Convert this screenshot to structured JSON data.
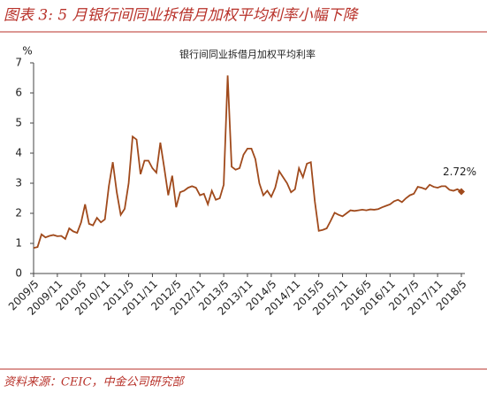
{
  "header": {
    "title": "图表 3: 5 月银行间同业拆借月加权平均利率小幅下降"
  },
  "chart_data": {
    "type": "line",
    "title": "银行间同业拆借月加权平均利率",
    "y_label": "%",
    "categories": [
      "2009/5",
      null,
      null,
      null,
      null,
      null,
      "2009/11",
      null,
      null,
      null,
      null,
      null,
      "2010/5",
      null,
      null,
      null,
      null,
      null,
      "2010/11",
      null,
      null,
      null,
      null,
      null,
      "2011/5",
      null,
      null,
      null,
      null,
      null,
      "2011/11",
      null,
      null,
      null,
      null,
      null,
      "2012/5",
      null,
      null,
      null,
      null,
      null,
      "2012/11",
      null,
      null,
      null,
      null,
      null,
      "2013/5",
      null,
      null,
      null,
      null,
      null,
      "2013/11",
      null,
      null,
      null,
      null,
      null,
      "2014/5",
      null,
      null,
      null,
      null,
      null,
      "2014/11",
      null,
      null,
      null,
      null,
      null,
      "2015/5",
      null,
      null,
      null,
      null,
      null,
      "2015/11",
      null,
      null,
      null,
      null,
      null,
      "2016/5",
      null,
      null,
      null,
      null,
      null,
      "2016/11",
      null,
      null,
      null,
      null,
      null,
      "2017/5",
      null,
      null,
      null,
      null,
      null,
      "2017/11",
      null,
      null,
      null,
      null,
      null,
      "2018/5"
    ],
    "series": [
      {
        "name": "银行间同业拆借月加权平均利率",
        "color": "#a04a1c",
        "values": [
          0.85,
          0.88,
          1.3,
          1.2,
          1.25,
          1.28,
          1.24,
          1.25,
          1.15,
          1.5,
          1.4,
          1.35,
          1.7,
          2.3,
          1.65,
          1.6,
          1.85,
          1.7,
          1.8,
          2.9,
          3.7,
          2.7,
          1.95,
          2.15,
          3.0,
          4.55,
          4.45,
          3.3,
          3.75,
          3.75,
          3.5,
          3.35,
          4.35,
          3.5,
          2.6,
          3.25,
          2.2,
          2.7,
          2.75,
          2.85,
          2.9,
          2.85,
          2.6,
          2.65,
          2.3,
          2.75,
          2.45,
          2.5,
          2.95,
          6.58,
          3.55,
          3.45,
          3.5,
          3.95,
          4.15,
          4.15,
          3.8,
          3.0,
          2.6,
          2.75,
          2.55,
          2.85,
          3.4,
          3.2,
          3.0,
          2.7,
          2.8,
          3.5,
          3.2,
          3.65,
          3.7,
          2.4,
          1.42,
          1.45,
          1.5,
          1.75,
          2.02,
          1.95,
          1.9,
          2.0,
          2.1,
          2.08,
          2.1,
          2.12,
          2.1,
          2.13,
          2.12,
          2.14,
          2.2,
          2.25,
          2.3,
          2.4,
          2.45,
          2.37,
          2.5,
          2.6,
          2.65,
          2.88,
          2.85,
          2.8,
          2.95,
          2.88,
          2.85,
          2.9,
          2.9,
          2.78,
          2.75,
          2.8,
          2.72
        ],
        "value_labels": [
          null,
          null,
          null,
          null,
          null,
          null,
          null,
          null,
          null,
          null,
          null,
          null,
          null,
          null,
          null,
          null,
          null,
          null,
          null,
          null,
          null,
          null,
          null,
          null,
          null,
          null,
          null,
          null,
          null,
          null,
          null,
          null,
          null,
          null,
          null,
          null,
          null,
          null,
          null,
          null,
          null,
          null,
          null,
          null,
          null,
          null,
          null,
          null,
          null,
          null,
          null,
          null,
          null,
          null,
          null,
          null,
          null,
          null,
          null,
          null,
          null,
          null,
          null,
          null,
          null,
          null,
          null,
          null,
          null,
          null,
          null,
          null,
          null,
          null,
          null,
          null,
          null,
          null,
          null,
          null,
          null,
          null,
          null,
          null,
          null,
          null,
          null,
          null,
          null,
          null,
          null,
          null,
          null,
          null,
          null,
          null,
          null,
          null,
          null,
          null,
          null,
          null,
          null,
          null,
          null,
          null,
          null,
          null,
          "2.72%"
        ]
      }
    ],
    "ylim": [
      0,
      7
    ],
    "yticks": [
      0,
      1,
      2,
      3,
      4,
      5,
      6,
      7
    ],
    "grid": false
  },
  "footer": {
    "source": "资料来源：CEIC，中金公司研究部"
  }
}
